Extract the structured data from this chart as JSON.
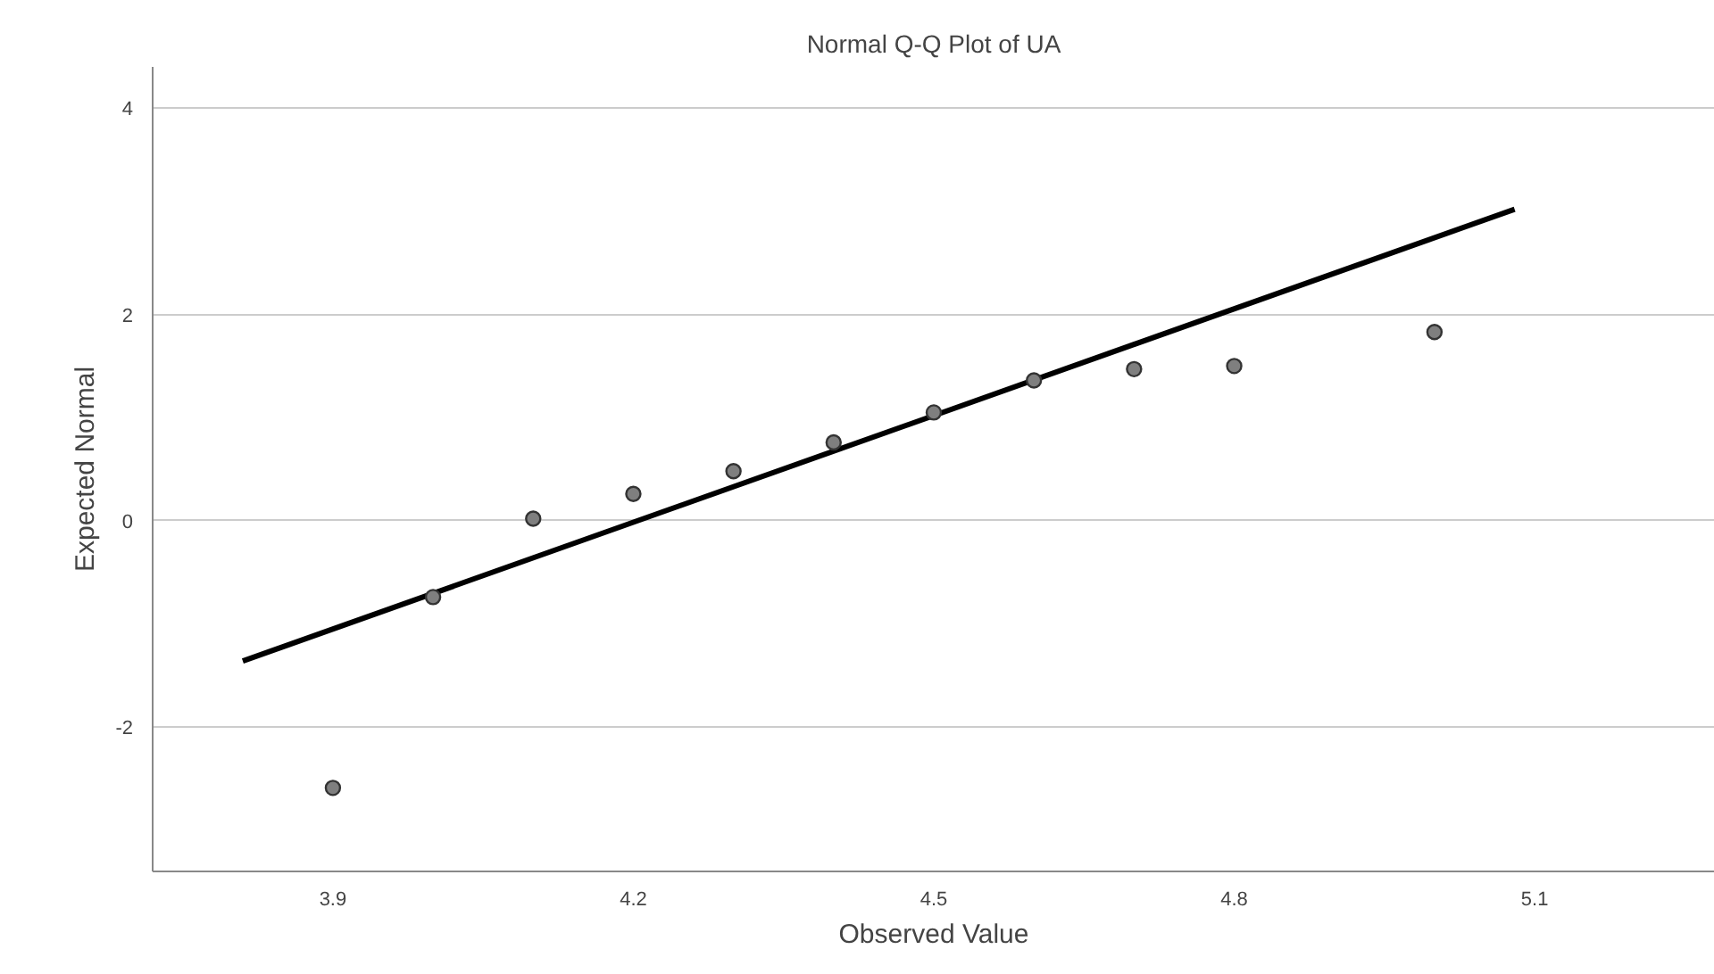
{
  "chart_data": {
    "type": "scatter",
    "title": "Normal Q-Q Plot of UA",
    "xlabel": "Observed Value",
    "ylabel": "Expected Normal",
    "xlim": [
      3.72,
      5.28
    ],
    "ylim": [
      -3.4,
      4.4
    ],
    "xticks": [
      3.9,
      4.2,
      4.5,
      4.8,
      5.1
    ],
    "yticks": [
      -2,
      0,
      2,
      4
    ],
    "grid": "y",
    "series": [
      {
        "marker": "circle",
        "color": "#7f7f7f",
        "x": [
          3.9,
          4.0,
          4.1,
          4.2,
          4.3,
          4.4,
          4.5,
          4.6,
          4.7,
          4.8,
          5.0
        ],
        "values": [
          -2.59,
          -0.74,
          0.02,
          0.26,
          0.48,
          0.76,
          1.05,
          1.36,
          1.47,
          1.5,
          1.83
        ]
      },
      {
        "type": "line",
        "color": "#000000",
        "x": [
          3.81,
          5.08
        ],
        "values": [
          -1.36,
          3.02
        ]
      }
    ]
  }
}
